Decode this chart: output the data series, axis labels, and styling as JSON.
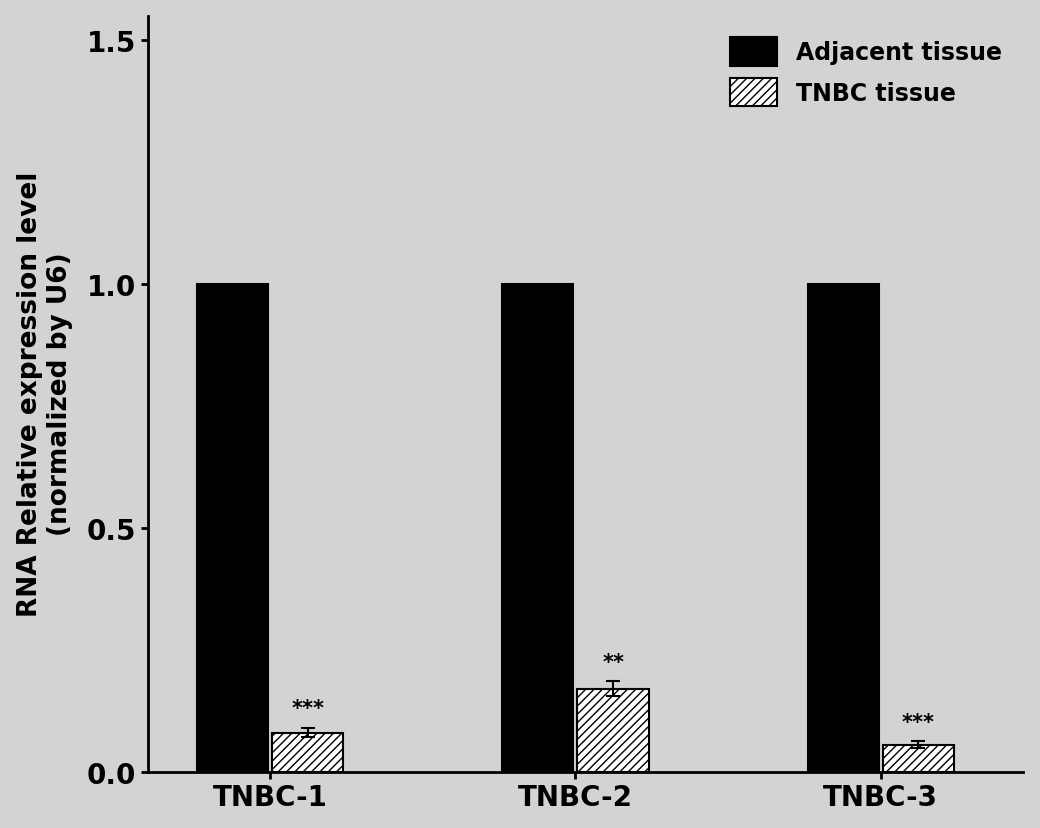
{
  "groups": [
    "TNBC-1",
    "TNBC-2",
    "TNBC-3"
  ],
  "adjacent_values": [
    1.0,
    1.0,
    1.0
  ],
  "tnbc_values": [
    0.08,
    0.17,
    0.055
  ],
  "tnbc_errors": [
    0.01,
    0.015,
    0.007
  ],
  "adjacent_color": "#000000",
  "tnbc_facecolor": "#ffffff",
  "tnbc_hatch": "////",
  "ylabel": "RNA Relative expression level\n(normalized by U6)",
  "ylim": [
    0,
    1.55
  ],
  "yticks": [
    0.0,
    0.5,
    1.0,
    1.5
  ],
  "ytick_labels": [
    "0.0",
    "0.5",
    "1.0",
    "1.5"
  ],
  "bar_width": 0.35,
  "group_centers": [
    1.0,
    2.5,
    4.0
  ],
  "legend_labels": [
    "Adjacent tissue",
    "TNBC tissue"
  ],
  "significance": [
    "***",
    "**",
    "***"
  ],
  "background_color": "#d3d3d3",
  "plot_bg_color": "#d3d3d3",
  "fontsize_ticks": 20,
  "fontsize_ylabel": 19,
  "fontsize_legend": 17,
  "fontsize_significance": 15
}
